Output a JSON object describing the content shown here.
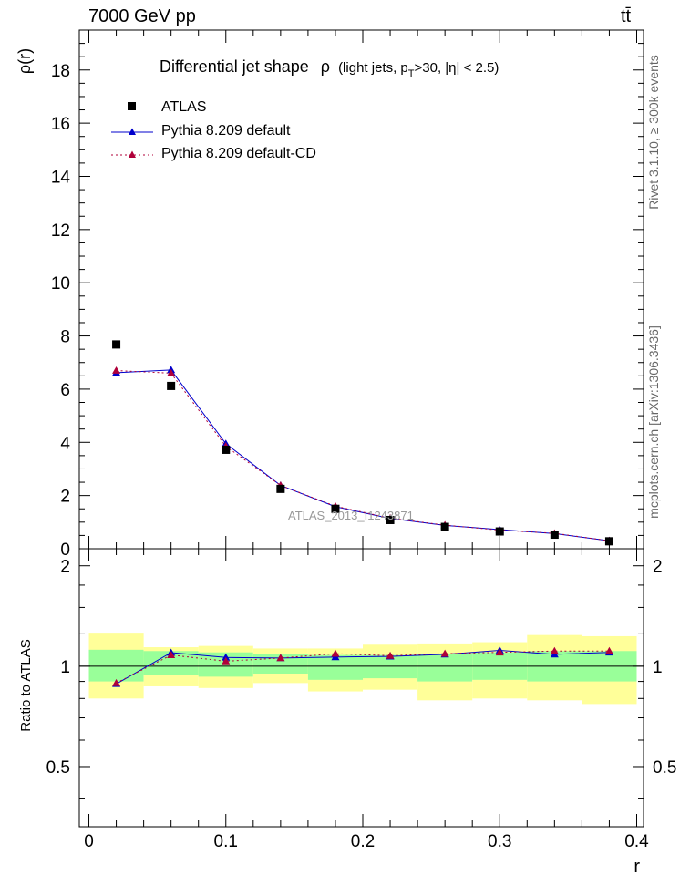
{
  "header": {
    "energy_label": "7000 GeV pp",
    "process_label": "tt̄"
  },
  "side_labels": {
    "rivet": "Rivet 3.1.10, ≥ 300k events",
    "mcplots": "mcplots.cern.ch [arXiv:1306.3436]"
  },
  "watermark": "ATLAS_2013_I1243871",
  "colors": {
    "data": "#000000",
    "default": "#0000cc",
    "default_cd": "#b0003a",
    "band_inner": "#99ff99",
    "band_outer": "#ffff99"
  },
  "chart_data": [
    {
      "type": "scatter",
      "title": "Differential jet shape  ρ (light jets, p_T>30, |η| < 2.5)",
      "title_main": "Differential jet shape",
      "title_rho": "ρ",
      "title_cond_a": "(light jets, p",
      "title_cond_sub": "T",
      "title_cond_b": ">30, |η| < 2.5)",
      "ylabel": "ρ(r)",
      "xlabel": "r",
      "xlim": [
        -0.007,
        0.405
      ],
      "ylim": [
        0,
        19.5
      ],
      "yticks": [
        0,
        2,
        4,
        6,
        8,
        10,
        12,
        14,
        16,
        18
      ],
      "ytick_labels": [
        "0",
        "2",
        "4",
        "6",
        "8",
        "10",
        "12",
        "14",
        "16",
        "18"
      ],
      "x": [
        0.02,
        0.06,
        0.1,
        0.14,
        0.18,
        0.22,
        0.26,
        0.3,
        0.34,
        0.38
      ],
      "legend_position": "top-left",
      "series": [
        {
          "name": "ATLAS",
          "marker": "square",
          "values": [
            7.68,
            6.12,
            3.72,
            2.25,
            1.5,
            1.08,
            0.82,
            0.65,
            0.53,
            0.28
          ]
        },
        {
          "name": "Pythia 8.209 default",
          "marker": "triangle",
          "line": "solid",
          "values": [
            6.62,
            6.72,
            3.95,
            2.38,
            1.58,
            1.14,
            0.88,
            0.72,
            0.57,
            0.3
          ]
        },
        {
          "name": "Pythia 8.209 default-CD",
          "marker": "triangle",
          "line": "dotted",
          "values": [
            6.7,
            6.6,
            3.85,
            2.38,
            1.6,
            1.15,
            0.89,
            0.7,
            0.58,
            0.3
          ]
        }
      ]
    },
    {
      "type": "scatter",
      "ylabel": "Ratio to ATLAS",
      "xlabel": "r",
      "xlim": [
        -0.007,
        0.405
      ],
      "ylim": [
        0.33,
        2.25
      ],
      "yticks": [
        0.5,
        1,
        2
      ],
      "ytick_labels": [
        "0.5",
        "1",
        "2"
      ],
      "xticks": [
        0,
        0.1,
        0.2,
        0.3,
        0.4
      ],
      "xtick_labels": [
        "0",
        "0.1",
        "0.2",
        "0.3",
        "0.4"
      ],
      "x": [
        0.02,
        0.06,
        0.1,
        0.14,
        0.18,
        0.22,
        0.26,
        0.3,
        0.34,
        0.38
      ],
      "bin_edges": [
        0,
        0.04,
        0.08,
        0.12,
        0.16,
        0.2,
        0.24,
        0.28,
        0.32,
        0.36,
        0.4
      ],
      "uncertainty_bands": {
        "inner_low": [
          0.9,
          0.94,
          0.93,
          0.95,
          0.91,
          0.92,
          0.9,
          0.91,
          0.9,
          0.9
        ],
        "inner_high": [
          1.12,
          1.11,
          1.1,
          1.09,
          1.08,
          1.08,
          1.09,
          1.1,
          1.11,
          1.11
        ],
        "outer_low": [
          0.8,
          0.87,
          0.86,
          0.89,
          0.84,
          0.85,
          0.79,
          0.8,
          0.79,
          0.77
        ],
        "outer_high": [
          1.26,
          1.14,
          1.15,
          1.13,
          1.13,
          1.16,
          1.17,
          1.18,
          1.24,
          1.23
        ]
      },
      "series": [
        {
          "name": "Pythia 8.209 default",
          "values": [
            0.885,
            1.098,
            1.062,
            1.058,
            1.065,
            1.07,
            1.085,
            1.115,
            1.085,
            1.1
          ]
        },
        {
          "name": "Pythia 8.209 default-CD",
          "values": [
            0.89,
            1.08,
            1.035,
            1.058,
            1.09,
            1.075,
            1.09,
            1.1,
            1.11,
            1.11
          ]
        }
      ]
    }
  ]
}
